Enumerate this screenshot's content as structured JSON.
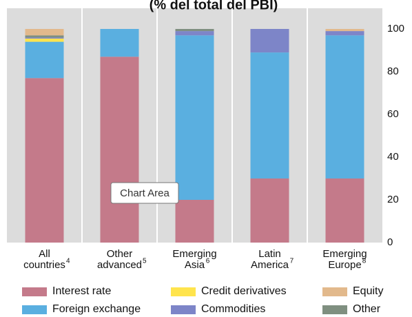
{
  "chart_data": {
    "type": "stacked_bar",
    "title": "(% del total del PBI)",
    "categories": [
      [
        "All",
        "countries"
      ],
      [
        "Other",
        "advanced"
      ],
      [
        "Emerging",
        "Asia"
      ],
      [
        "Latin",
        "America"
      ],
      [
        "Emerging",
        "Europe"
      ]
    ],
    "category_notes": [
      "4",
      "5",
      "6",
      "7",
      "8"
    ],
    "series": [
      {
        "name": "Interest rate",
        "color": "#c47a8a",
        "values": [
          77,
          87,
          20,
          30,
          30
        ]
      },
      {
        "name": "Foreign exchange",
        "color": "#5aafe0",
        "values": [
          17,
          13,
          77,
          59,
          67
        ]
      },
      {
        "name": "Credit derivatives",
        "color": "#ffe44d",
        "values": [
          1.5,
          0,
          0,
          0,
          0
        ]
      },
      {
        "name": "Commodities",
        "color": "#7d85c8",
        "values": [
          0.5,
          0,
          2,
          11,
          2
        ]
      },
      {
        "name": "Other",
        "color": "#7f8f80",
        "values": [
          1,
          0,
          1,
          0,
          0
        ]
      },
      {
        "name": "Equity",
        "color": "#e2b98c",
        "values": [
          3,
          0,
          0,
          0,
          1
        ]
      }
    ],
    "ylim": [
      0,
      100
    ],
    "yticks": [
      0,
      20,
      40,
      60,
      80,
      100
    ],
    "grid": false,
    "tooltip": "Chart Area"
  }
}
